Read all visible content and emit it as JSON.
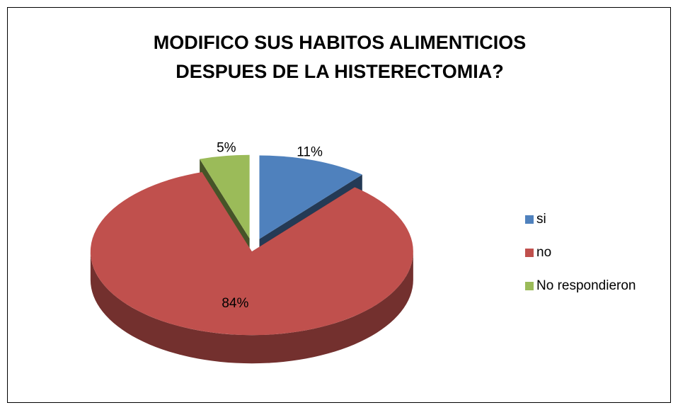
{
  "chart_data": {
    "type": "pie",
    "title": [
      "MODIFICO SUS HABITOS ALIMENTICIOS",
      "DESPUES DE LA HISTERECTOMIA?"
    ],
    "categories": [
      "si",
      "no",
      "No respondieron"
    ],
    "values": [
      11,
      84,
      5
    ],
    "value_labels": [
      "11%",
      "84%",
      "5%"
    ],
    "colors": [
      "#4f81bd",
      "#c0504d",
      "#9bbb59"
    ],
    "legend": "right"
  }
}
